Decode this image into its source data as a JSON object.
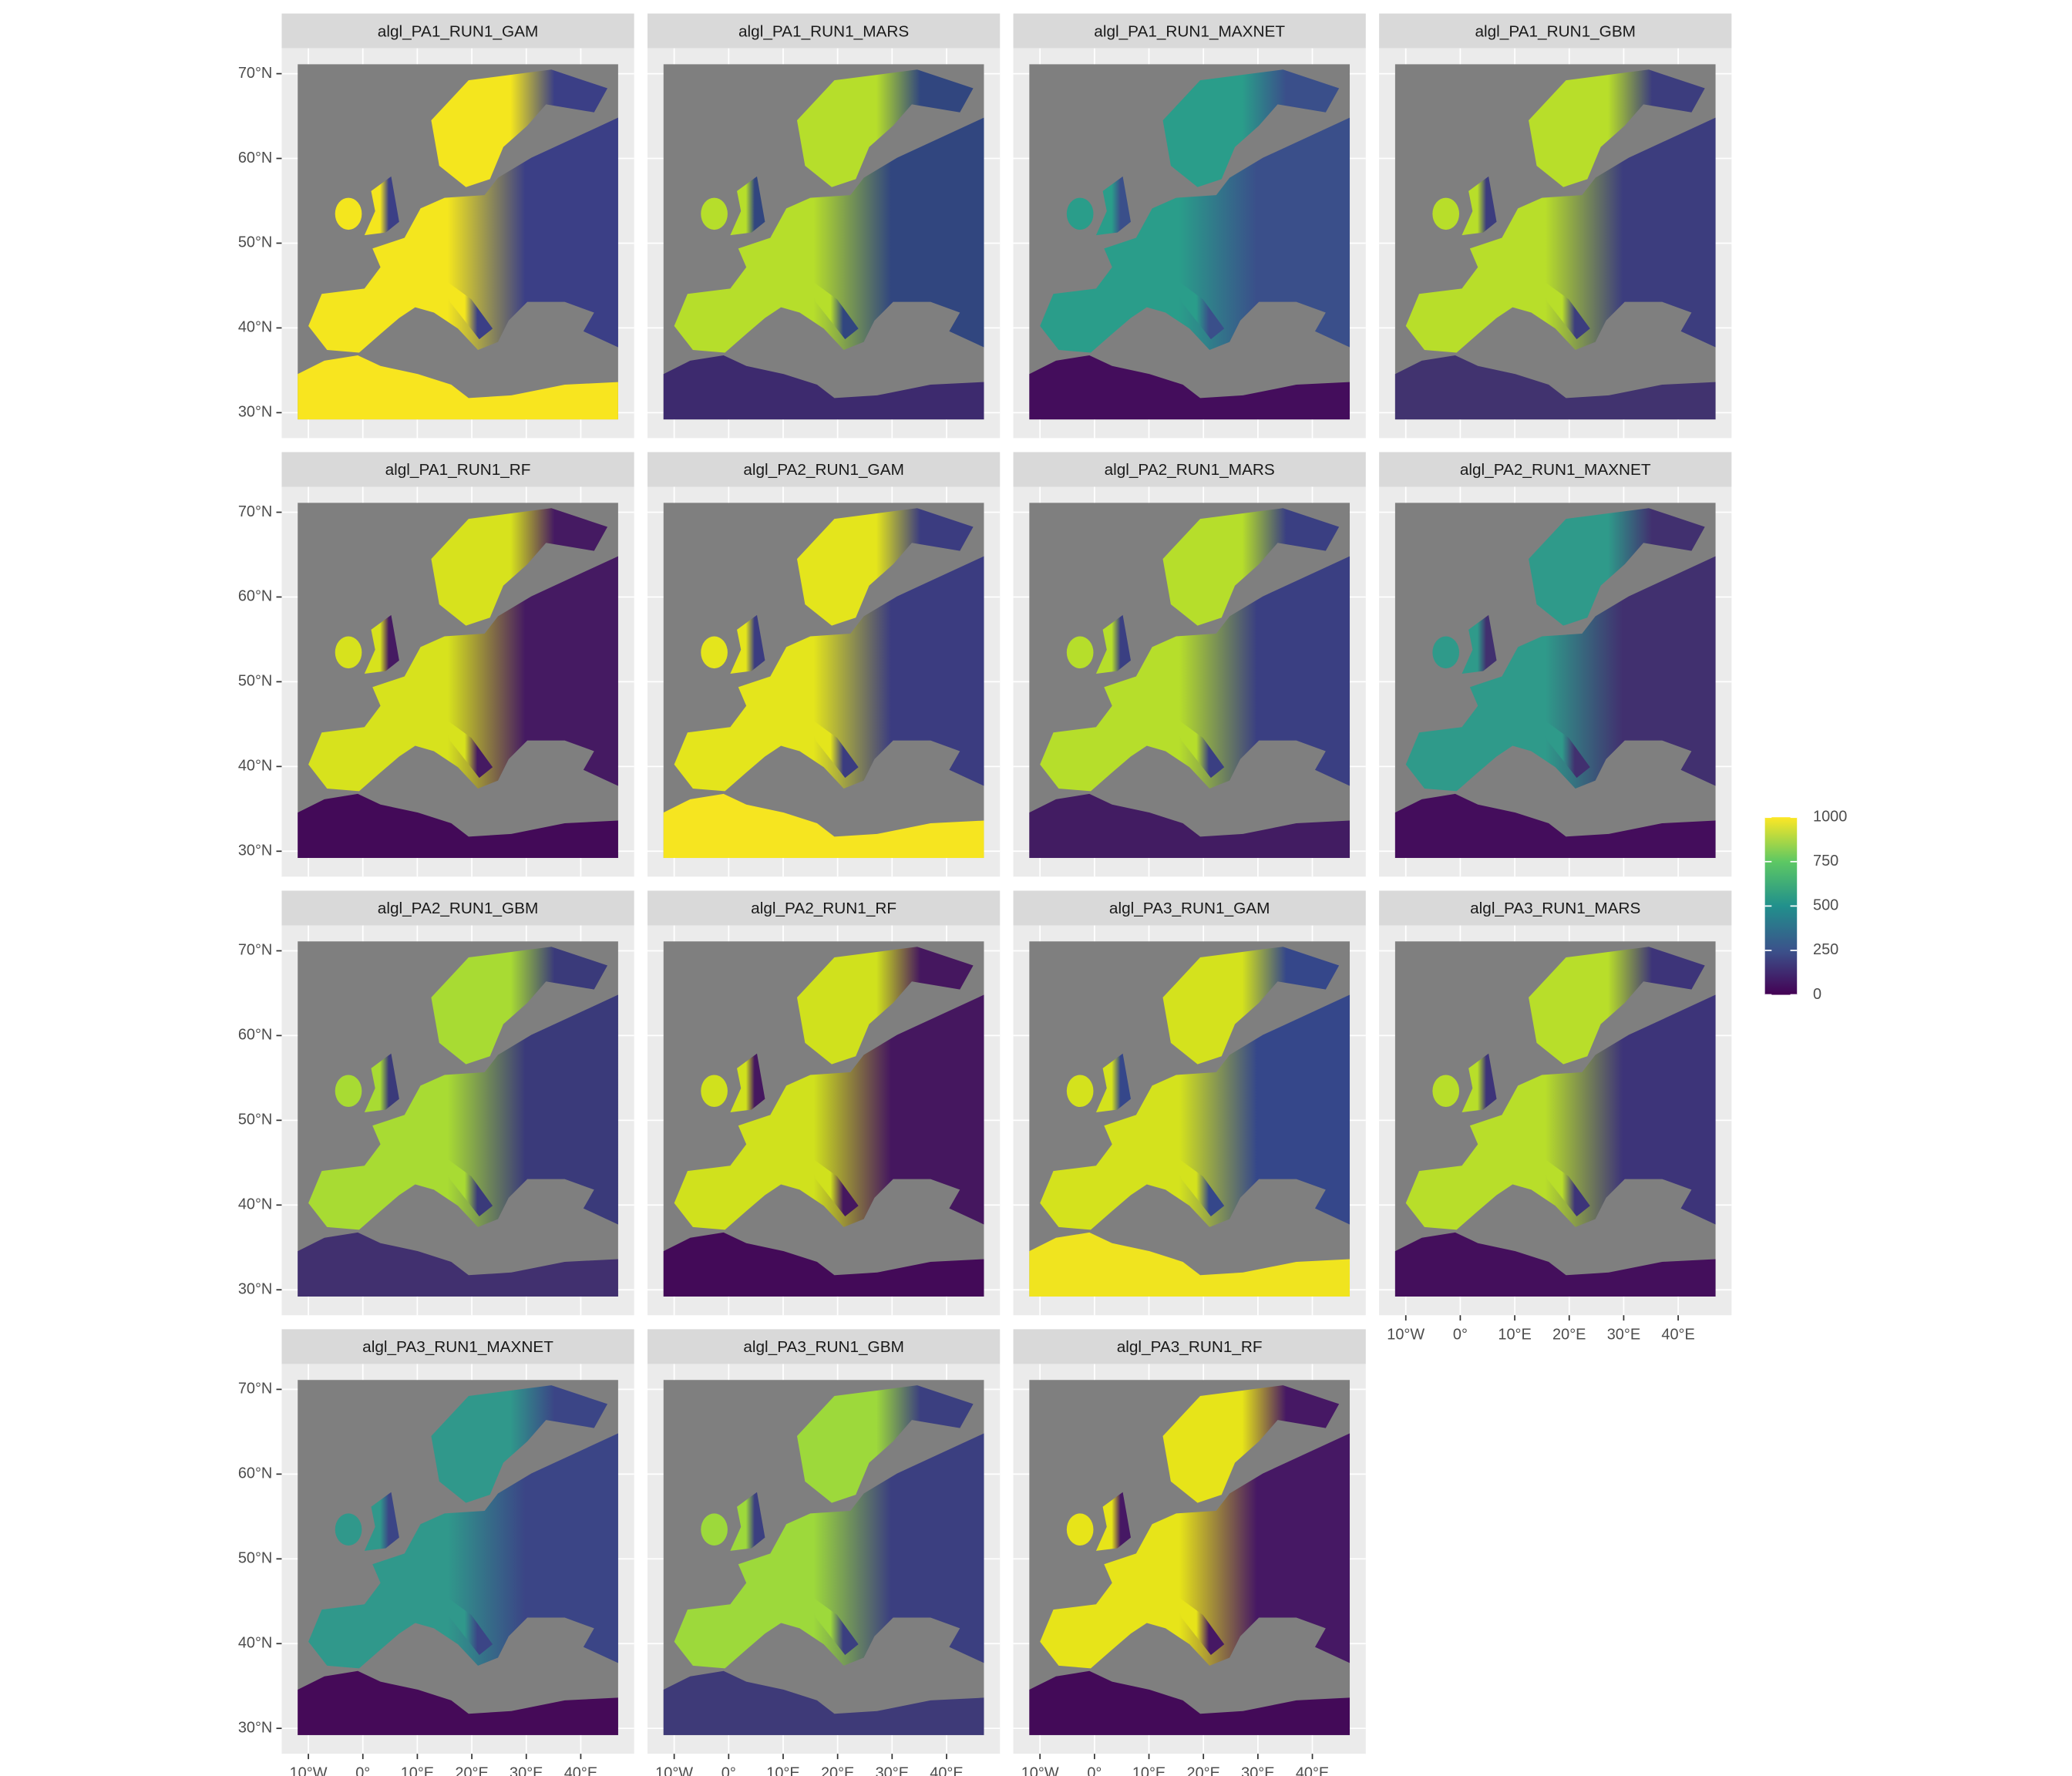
{
  "chart_data": {
    "type": "raster",
    "panels": [
      "algl_PA1_RUN1_GAM",
      "algl_PA1_RUN1_MARS",
      "algl_PA1_RUN1_MAXNET",
      "algl_PA1_RUN1_GBM",
      "algl_PA1_RUN1_RF",
      "algl_PA2_RUN1_GAM",
      "algl_PA2_RUN1_MARS",
      "algl_PA2_RUN1_MAXNET",
      "algl_PA2_RUN1_GBM",
      "algl_PA2_RUN1_RF",
      "algl_PA3_RUN1_GAM",
      "algl_PA3_RUN1_MARS",
      "algl_PA3_RUN1_MAXNET",
      "algl_PA3_RUN1_GBM",
      "algl_PA3_RUN1_RF"
    ],
    "xlim": [
      -14.9,
      49.8
    ],
    "xticks": [
      {
        "value": -10,
        "label": "10°W"
      },
      {
        "value": 0,
        "label": "0°"
      },
      {
        "value": 10,
        "label": "10°E"
      },
      {
        "value": 20,
        "label": "20°E"
      },
      {
        "value": 30,
        "label": "30°E"
      },
      {
        "value": 40,
        "label": "40°E"
      }
    ],
    "ylim": [
      27,
      73
    ],
    "yticks": [
      {
        "value": 30,
        "label": "30°N"
      },
      {
        "value": 40,
        "label": "40°N"
      },
      {
        "value": 50,
        "label": "50°N"
      },
      {
        "value": 60,
        "label": "60°N"
      },
      {
        "value": 70,
        "label": "70°N"
      }
    ],
    "grid": true,
    "colorbar": {
      "lim": [
        0,
        1000
      ],
      "ticks": [
        0,
        250,
        500,
        750,
        1000
      ],
      "colors": [
        "#440154",
        "#3b528b",
        "#21908c",
        "#5dc863",
        "#fde725"
      ]
    }
  }
}
